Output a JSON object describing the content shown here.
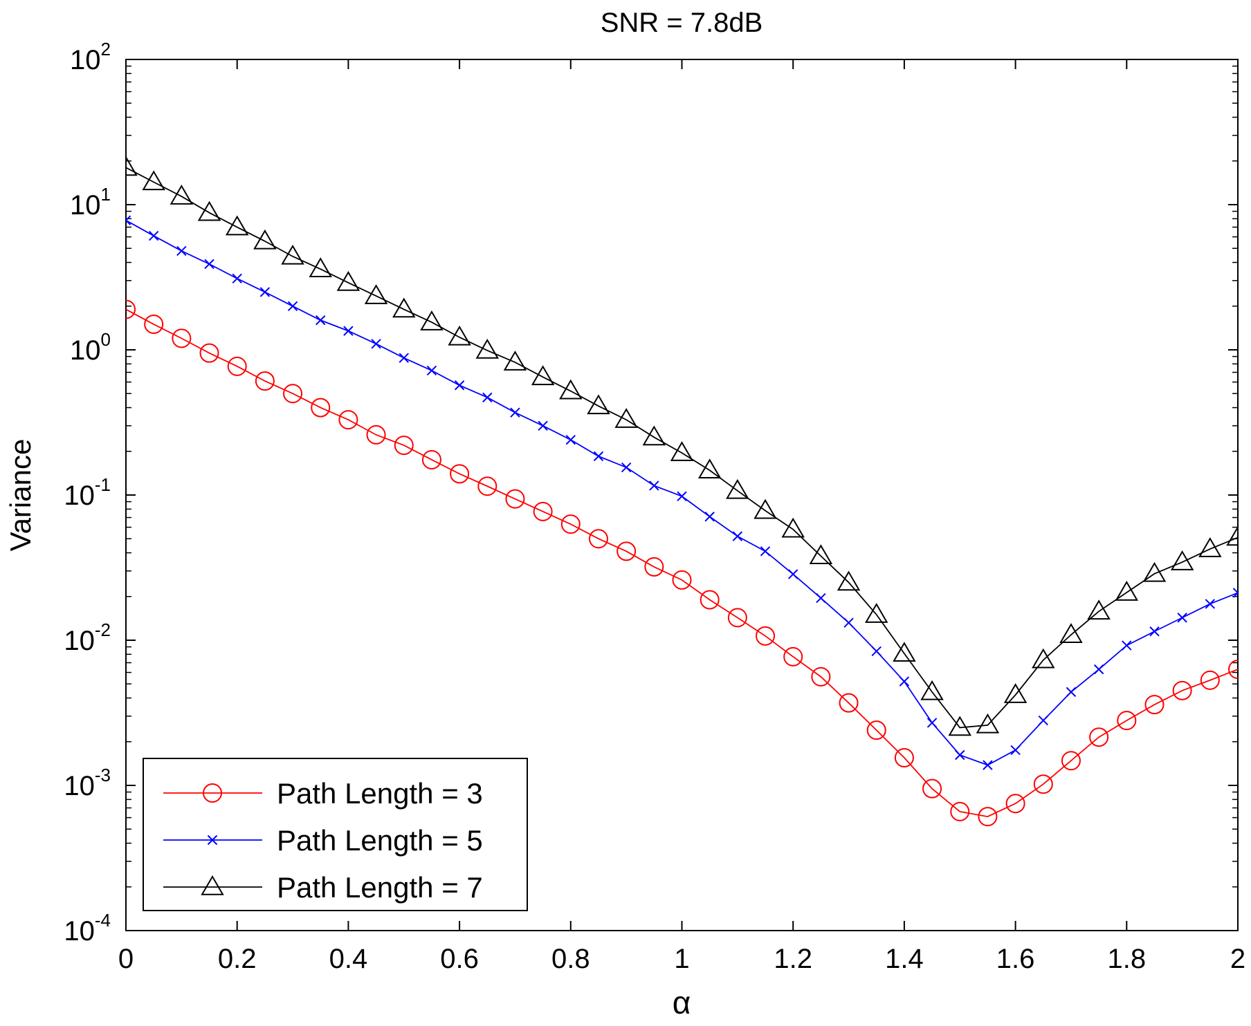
{
  "chart_data": {
    "type": "line",
    "title": "SNR = 7.8dB",
    "xlabel": "α",
    "ylabel": "Variance",
    "xscale": "linear",
    "yscale": "log",
    "xlim": [
      0,
      2
    ],
    "ylim": [
      0.0001,
      100
    ],
    "xticks": [
      0,
      0.2,
      0.4,
      0.6,
      0.8,
      1,
      1.2,
      1.4,
      1.6,
      1.8,
      2
    ],
    "xtick_labels": [
      "0",
      "0.2",
      "0.4",
      "0.6",
      "0.8",
      "1",
      "1.2",
      "1.4",
      "1.6",
      "1.8",
      "2"
    ],
    "yticks": [
      {
        "value": 0.0001,
        "base": "10",
        "exp": "-4"
      },
      {
        "value": 0.001,
        "base": "10",
        "exp": "-3"
      },
      {
        "value": 0.01,
        "base": "10",
        "exp": "-2"
      },
      {
        "value": 0.1,
        "base": "10",
        "exp": "-1"
      },
      {
        "value": 1,
        "base": "10",
        "exp": "0"
      },
      {
        "value": 10,
        "base": "10",
        "exp": "1"
      },
      {
        "value": 100,
        "base": "10",
        "exp": "2"
      }
    ],
    "grid": false,
    "legend_position": "bottom-left",
    "x": [
      0,
      0.05,
      0.1,
      0.15,
      0.2,
      0.25,
      0.3,
      0.35,
      0.4,
      0.45,
      0.5,
      0.55,
      0.6,
      0.65,
      0.7,
      0.75,
      0.8,
      0.85,
      0.9,
      0.95,
      1,
      1.05,
      1.1,
      1.15,
      1.2,
      1.25,
      1.3,
      1.35,
      1.4,
      1.45,
      1.5,
      1.55,
      1.6,
      1.65,
      1.7,
      1.75,
      1.8,
      1.85,
      1.9,
      1.95,
      2
    ],
    "series": [
      {
        "name": "Path Length = 3",
        "color": "#ff0000",
        "marker": "circle",
        "values": [
          1.9,
          1.5,
          1.2,
          0.95,
          0.77,
          0.61,
          0.5,
          0.4,
          0.33,
          0.26,
          0.22,
          0.175,
          0.14,
          0.115,
          0.094,
          0.077,
          0.063,
          0.05,
          0.041,
          0.032,
          0.026,
          0.019,
          0.0143,
          0.0107,
          0.0077,
          0.0056,
          0.0037,
          0.0024,
          0.00155,
          0.00095,
          0.00066,
          0.00061,
          0.00075,
          0.00102,
          0.00148,
          0.00215,
          0.0028,
          0.0036,
          0.0045,
          0.0053,
          0.0063
        ]
      },
      {
        "name": "Path Length = 5",
        "color": "#0000ff",
        "marker": "x",
        "values": [
          7.8,
          6.1,
          4.8,
          3.9,
          3.1,
          2.5,
          2.0,
          1.6,
          1.35,
          1.1,
          0.88,
          0.72,
          0.57,
          0.47,
          0.37,
          0.3,
          0.24,
          0.185,
          0.155,
          0.116,
          0.098,
          0.071,
          0.052,
          0.041,
          0.0285,
          0.0195,
          0.0132,
          0.0084,
          0.0052,
          0.0027,
          0.00162,
          0.00138,
          0.00175,
          0.0028,
          0.0044,
          0.0063,
          0.0092,
          0.0115,
          0.0143,
          0.0178,
          0.0212
        ]
      },
      {
        "name": "Path Length = 7",
        "color": "#000000",
        "marker": "triangle",
        "values": [
          18,
          14.3,
          11.4,
          8.8,
          7.0,
          5.6,
          4.4,
          3.6,
          2.9,
          2.35,
          1.9,
          1.55,
          1.22,
          0.99,
          0.82,
          0.65,
          0.52,
          0.41,
          0.33,
          0.25,
          0.195,
          0.148,
          0.107,
          0.078,
          0.058,
          0.038,
          0.025,
          0.015,
          0.0081,
          0.0044,
          0.0025,
          0.0026,
          0.0042,
          0.0073,
          0.0109,
          0.0158,
          0.0213,
          0.0287,
          0.0345,
          0.0425,
          0.051
        ]
      }
    ]
  }
}
